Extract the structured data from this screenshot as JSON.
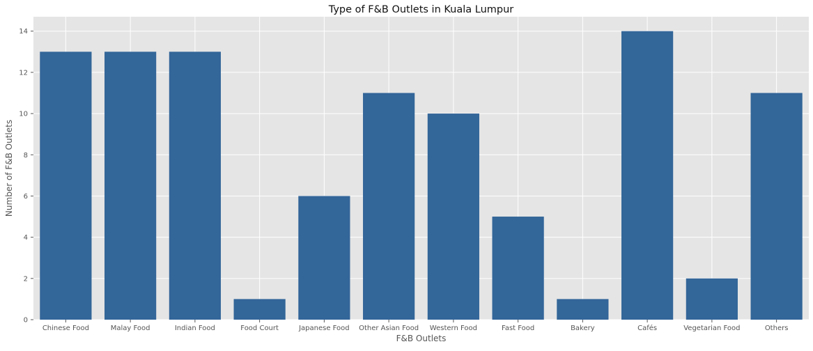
{
  "chart_data": {
    "type": "bar",
    "title": "Type of F&B Outlets in Kuala Lumpur",
    "xlabel": "F&B Outlets",
    "ylabel": "Number of F&B Outlets",
    "categories": [
      "Chinese Food",
      "Malay Food",
      "Indian Food",
      "Food Court",
      "Japanese Food",
      "Other Asian Food",
      "Western Food",
      "Fast Food",
      "Bakery",
      "Cafés",
      "Vegetarian Food",
      "Others"
    ],
    "values": [
      13,
      13,
      13,
      1,
      6,
      11,
      10,
      5,
      1,
      14,
      2,
      11
    ],
    "ylim": [
      0,
      14.7
    ],
    "yticks": [
      "0",
      "2",
      "4",
      "6",
      "8",
      "10",
      "12",
      "14"
    ],
    "grid": true,
    "legend": "none",
    "colors": {
      "bar": "#336699",
      "plot_background": "#e5e5e5",
      "grid": "#ffffff"
    }
  }
}
